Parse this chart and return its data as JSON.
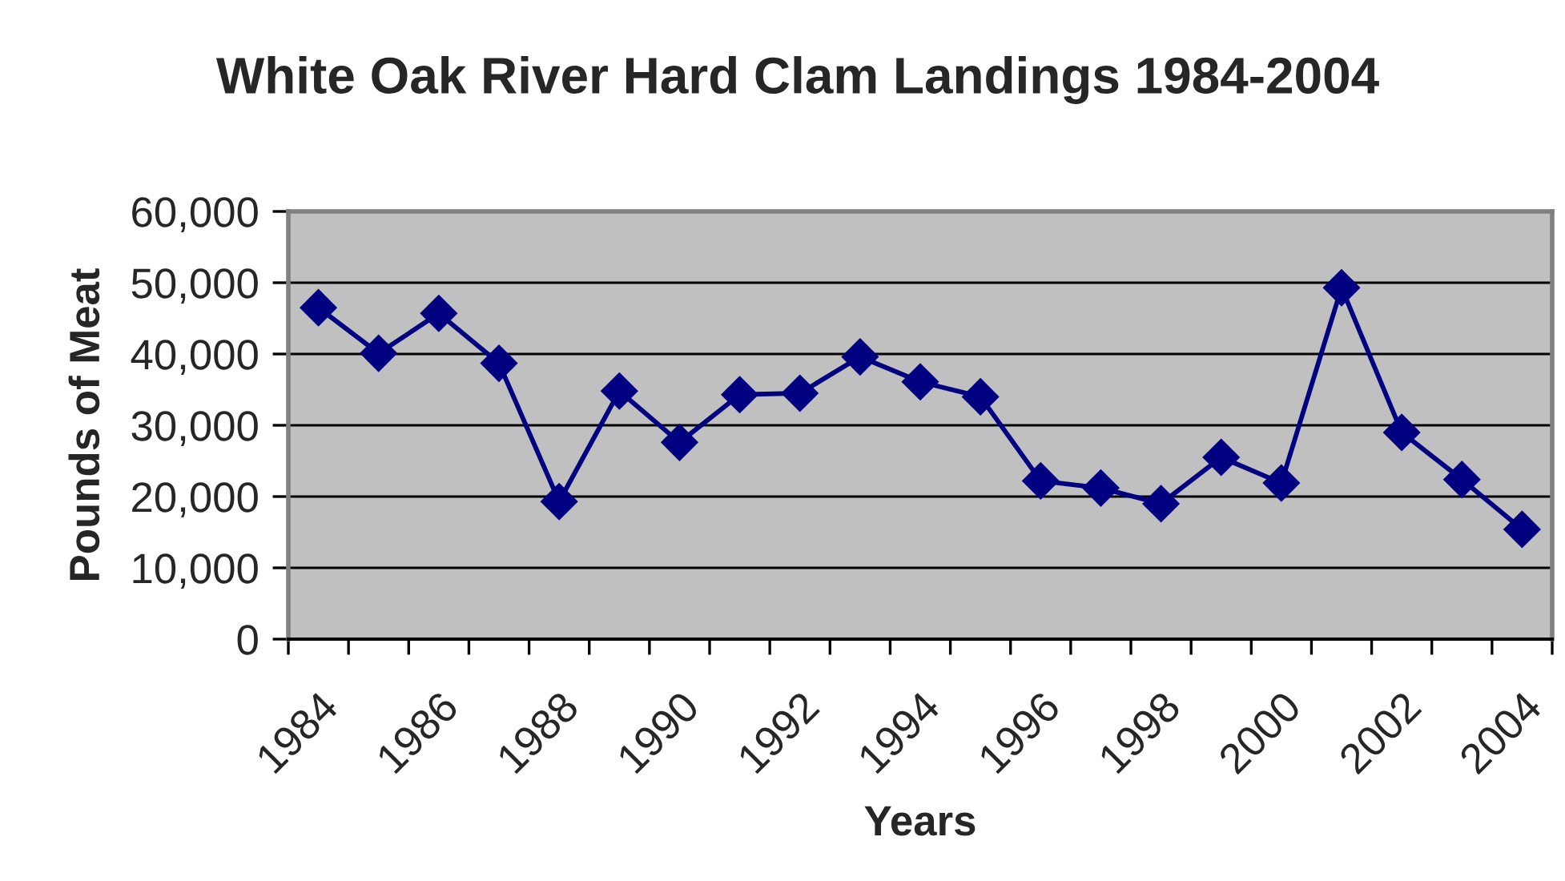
{
  "chart_data": {
    "type": "line",
    "title": "White Oak River Hard Clam Landings 1984-2004",
    "xlabel": "Years",
    "ylabel": "Pounds of Meat",
    "categories": [
      "1984",
      null,
      "1986",
      null,
      "1988",
      null,
      "1990",
      null,
      "1992",
      null,
      "1994",
      null,
      "1996",
      null,
      "1998",
      null,
      "2000",
      null,
      "2002",
      null,
      "2004"
    ],
    "series": [
      {
        "color": "#000080",
        "values": [
          46500,
          40100,
          45700,
          38700,
          19300,
          34800,
          27600,
          34300,
          34500,
          39600,
          36100,
          34000,
          22200,
          21200,
          19000,
          25500,
          21900,
          49300,
          29000,
          22400,
          15400
        ]
      }
    ],
    "ylim": [
      0,
      60000
    ],
    "yticks": [
      {
        "value": 0,
        "label": "0"
      },
      {
        "value": 10000,
        "label": "10,000"
      },
      {
        "value": 20000,
        "label": "20,000"
      },
      {
        "value": 30000,
        "label": "30,000"
      },
      {
        "value": 40000,
        "label": "40,000"
      },
      {
        "value": 50000,
        "label": "50,000"
      },
      {
        "value": 60000,
        "label": "60,000"
      }
    ],
    "grid": "y",
    "marker": "diamond",
    "line_style": "solid"
  }
}
